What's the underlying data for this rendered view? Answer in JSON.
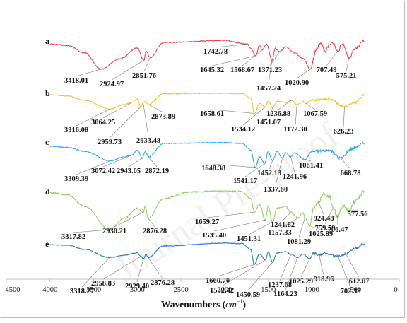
{
  "watermark": "Journal Pre-proof",
  "chart_data": {
    "type": "line",
    "xlabel_main": "Wavenumbers (",
    "xlabel_unit": "cm",
    "xlabel_exp": "−1",
    "xlabel_close": ")",
    "ylabel": "",
    "xlim": [
      4500,
      0
    ],
    "x_ticks": [
      "4500",
      "4000",
      "3500",
      "3000",
      "2500",
      "2000",
      "1500",
      "1000",
      "500",
      "0"
    ],
    "grid": false,
    "series": [
      {
        "letter": "a",
        "color": "#e8454d",
        "x_range": [
          4000,
          400
        ],
        "profile": [
          [
            4000,
            0.85
          ],
          [
            3800,
            0.8
          ],
          [
            3600,
            0.55
          ],
          [
            3418,
            0.0
          ],
          [
            3200,
            0.35
          ],
          [
            3000,
            0.72
          ],
          [
            2925,
            0.3
          ],
          [
            2900,
            0.6
          ],
          [
            2852,
            0.4
          ],
          [
            2700,
            0.9
          ],
          [
            2000,
            0.97
          ],
          [
            1742,
            0.85
          ],
          [
            1700,
            0.7
          ],
          [
            1645,
            0.45
          ],
          [
            1600,
            0.8
          ],
          [
            1568,
            0.65
          ],
          [
            1520,
            0.85
          ],
          [
            1457,
            0.3
          ],
          [
            1420,
            0.7
          ],
          [
            1371,
            0.6
          ],
          [
            1300,
            0.75
          ],
          [
            1200,
            0.55
          ],
          [
            1100,
            0.35
          ],
          [
            1020,
            0.0
          ],
          [
            950,
            0.65
          ],
          [
            900,
            0.9
          ],
          [
            850,
            0.6
          ],
          [
            800,
            0.8
          ],
          [
            760,
            0.9
          ],
          [
            707,
            0.6
          ],
          [
            650,
            0.85
          ],
          [
            575,
            0.4
          ],
          [
            500,
            0.7
          ],
          [
            400,
            0.95
          ]
        ],
        "annotations": [
          {
            "x": 3418.01,
            "label": "3418.01"
          },
          {
            "x": 2924.97,
            "label": "2924.97"
          },
          {
            "x": 2851.76,
            "label": "2851.76"
          },
          {
            "x": 1742.78,
            "label": "1742.78"
          },
          {
            "x": 1645.32,
            "label": "1645.32"
          },
          {
            "x": 1568.67,
            "label": "1568.67"
          },
          {
            "x": 1457.24,
            "label": "1457.24"
          },
          {
            "x": 1371.23,
            "label": "1371.23"
          },
          {
            "x": 1020.9,
            "label": "1020.90"
          },
          {
            "x": 707.49,
            "label": "707.49"
          },
          {
            "x": 575.21,
            "label": "575.21"
          }
        ]
      },
      {
        "letter": "b",
        "color": "#f2c12e",
        "x_range": [
          4000,
          400
        ],
        "profile": [
          [
            4000,
            0.9
          ],
          [
            3800,
            0.85
          ],
          [
            3600,
            0.65
          ],
          [
            3316,
            0.25
          ],
          [
            3150,
            0.45
          ],
          [
            3064,
            0.55
          ],
          [
            3000,
            0.7
          ],
          [
            2960,
            0.35
          ],
          [
            2933,
            0.55
          ],
          [
            2910,
            0.6
          ],
          [
            2874,
            0.45
          ],
          [
            2700,
            0.95
          ],
          [
            2000,
            0.97
          ],
          [
            1800,
            0.95
          ],
          [
            1700,
            0.75
          ],
          [
            1658,
            0.05
          ],
          [
            1600,
            0.5
          ],
          [
            1534,
            0.35
          ],
          [
            1500,
            0.6
          ],
          [
            1451,
            0.3
          ],
          [
            1400,
            0.6
          ],
          [
            1300,
            0.55
          ],
          [
            1237,
            0.65
          ],
          [
            1172,
            0.45
          ],
          [
            1100,
            0.6
          ],
          [
            1067,
            0.5
          ],
          [
            1000,
            0.65
          ],
          [
            800,
            0.7
          ],
          [
            626,
            0.35
          ],
          [
            500,
            0.55
          ],
          [
            400,
            0.9
          ]
        ],
        "annotations": [
          {
            "x": 3316.08,
            "label": "3316.08"
          },
          {
            "x": 3064.25,
            "label": "3064.25"
          },
          {
            "x": 2959.73,
            "label": "2959.73"
          },
          {
            "x": 2933.48,
            "label": "2933.48"
          },
          {
            "x": 2873.89,
            "label": "2873.89"
          },
          {
            "x": 1658.61,
            "label": "1658.61"
          },
          {
            "x": 1534.12,
            "label": "1534.12"
          },
          {
            "x": 1451.07,
            "label": "1451.07"
          },
          {
            "x": 1236.88,
            "label": "1236.88"
          },
          {
            "x": 1172.3,
            "label": "1172.30"
          },
          {
            "x": 1067.59,
            "label": "1067.59"
          },
          {
            "x": 626.23,
            "label": "626.23"
          }
        ]
      },
      {
        "letter": "c",
        "color": "#2ea8df",
        "x_range": [
          4000,
          400
        ],
        "profile": [
          [
            4000,
            0.85
          ],
          [
            3800,
            0.8
          ],
          [
            3600,
            0.65
          ],
          [
            3309,
            0.3
          ],
          [
            3150,
            0.45
          ],
          [
            3072,
            0.5
          ],
          [
            3000,
            0.7
          ],
          [
            2943,
            0.4
          ],
          [
            2910,
            0.65
          ],
          [
            2872,
            0.45
          ],
          [
            2700,
            0.95
          ],
          [
            2000,
            0.98
          ],
          [
            1800,
            0.95
          ],
          [
            1700,
            0.7
          ],
          [
            1648,
            0.05
          ],
          [
            1600,
            0.45
          ],
          [
            1541,
            0.2
          ],
          [
            1500,
            0.65
          ],
          [
            1452,
            0.3
          ],
          [
            1400,
            0.65
          ],
          [
            1337,
            0.4
          ],
          [
            1300,
            0.6
          ],
          [
            1242,
            0.45
          ],
          [
            1200,
            0.6
          ],
          [
            1081,
            0.35
          ],
          [
            1000,
            0.65
          ],
          [
            800,
            0.7
          ],
          [
            669,
            0.4
          ],
          [
            550,
            0.75
          ],
          [
            400,
            0.95
          ]
        ],
        "annotations": [
          {
            "x": 3309.39,
            "label": "3309.39"
          },
          {
            "x": 3072.42,
            "label": "3072.42"
          },
          {
            "x": 2943.05,
            "label": "2943.05"
          },
          {
            "x": 2872.19,
            "label": "2872.19"
          },
          {
            "x": 1648.38,
            "label": "1648.38"
          },
          {
            "x": 1541.17,
            "label": "1541.17"
          },
          {
            "x": 1452.13,
            "label": "1452.13"
          },
          {
            "x": 1337.6,
            "label": "1337.60"
          },
          {
            "x": 1241.96,
            "label": "1241.96"
          },
          {
            "x": 1081.41,
            "label": "1081.41"
          },
          {
            "x": 668.78,
            "label": "668.78"
          }
        ]
      },
      {
        "letter": "d",
        "color": "#92cf62",
        "x_range": [
          4000,
          400
        ],
        "profile": [
          [
            4000,
            0.95
          ],
          [
            3800,
            0.9
          ],
          [
            3600,
            0.6
          ],
          [
            3318,
            0.0
          ],
          [
            3150,
            0.3
          ],
          [
            3000,
            0.55
          ],
          [
            2930,
            0.45
          ],
          [
            2910,
            0.6
          ],
          [
            2876,
            0.3
          ],
          [
            2700,
            0.8
          ],
          [
            2400,
            0.97
          ],
          [
            2000,
            1.0
          ],
          [
            1800,
            0.98
          ],
          [
            1700,
            0.8
          ],
          [
            1659,
            0.45
          ],
          [
            1600,
            0.65
          ],
          [
            1535,
            0.25
          ],
          [
            1500,
            0.6
          ],
          [
            1451,
            0.2
          ],
          [
            1400,
            0.55
          ],
          [
            1300,
            0.6
          ],
          [
            1242,
            0.45
          ],
          [
            1157,
            0.3
          ],
          [
            1100,
            0.45
          ],
          [
            1081,
            0.3
          ],
          [
            1026,
            0.1
          ],
          [
            980,
            0.55
          ],
          [
            924,
            0.7
          ],
          [
            880,
            0.9
          ],
          [
            800,
            0.85
          ],
          [
            760,
            0.55
          ],
          [
            706,
            0.35
          ],
          [
            650,
            0.6
          ],
          [
            578,
            0.5
          ],
          [
            500,
            0.75
          ],
          [
            400,
            0.98
          ]
        ],
        "annotations": [
          {
            "x": 3317.82,
            "label": "3317.82"
          },
          {
            "x": 2930.21,
            "label": "2930.21"
          },
          {
            "x": 2876.28,
            "label": "2876.28"
          },
          {
            "x": 1659.27,
            "label": "1659.27"
          },
          {
            "x": 1535.4,
            "label": "1535.40"
          },
          {
            "x": 1451.31,
            "label": "1451.31"
          },
          {
            "x": 1241.82,
            "label": "1241.82"
          },
          {
            "x": 1157.33,
            "label": "1157.33"
          },
          {
            "x": 1081.29,
            "label": "1081.29"
          },
          {
            "x": 1025.89,
            "label": "1025.89"
          },
          {
            "x": 924.48,
            "label": "924.48"
          },
          {
            "x": 759.59,
            "label": "759.59"
          },
          {
            "x": 706.47,
            "label": "706.47"
          },
          {
            "x": 577.56,
            "label": "577.56"
          }
        ]
      },
      {
        "letter": "e",
        "color": "#2d78c4",
        "x_range": [
          4000,
          400
        ],
        "profile": [
          [
            4000,
            0.9
          ],
          [
            3800,
            0.88
          ],
          [
            3600,
            0.7
          ],
          [
            3318,
            0.35
          ],
          [
            3150,
            0.45
          ],
          [
            3000,
            0.55
          ],
          [
            2959,
            0.4
          ],
          [
            2929,
            0.3
          ],
          [
            2900,
            0.5
          ],
          [
            2876,
            0.35
          ],
          [
            2700,
            0.85
          ],
          [
            2000,
            0.97
          ],
          [
            1800,
            0.95
          ],
          [
            1700,
            0.7
          ],
          [
            1661,
            0.05
          ],
          [
            1600,
            0.5
          ],
          [
            1532,
            0.25
          ],
          [
            1500,
            0.6
          ],
          [
            1451,
            0.15
          ],
          [
            1400,
            0.55
          ],
          [
            1300,
            0.6
          ],
          [
            1238,
            0.5
          ],
          [
            1164,
            0.35
          ],
          [
            1100,
            0.5
          ],
          [
            1025,
            0.3
          ],
          [
            980,
            0.55
          ],
          [
            919,
            0.45
          ],
          [
            850,
            0.55
          ],
          [
            702,
            0.4
          ],
          [
            612,
            0.5
          ],
          [
            500,
            0.75
          ],
          [
            400,
            0.95
          ]
        ],
        "annotations": [
          {
            "x": 3318.27,
            "label": "3318.27"
          },
          {
            "x": 2958.83,
            "label": "2958.83"
          },
          {
            "x": 2929.4,
            "label": "2929.40"
          },
          {
            "x": 2876.28,
            "label": "2876.28"
          },
          {
            "x": 1660.7,
            "label": "1660.70"
          },
          {
            "x": 1532.42,
            "label": "1532.42"
          },
          {
            "x": 1450.59,
            "label": "1450.59"
          },
          {
            "x": 1237.68,
            "label": "1237.68"
          },
          {
            "x": 1164.23,
            "label": "1164.23"
          },
          {
            "x": 1025.29,
            "label": "1025.29"
          },
          {
            "x": 918.96,
            "label": "918.96"
          },
          {
            "x": 702.38,
            "label": "702.38"
          },
          {
            "x": 612.07,
            "label": "612.07"
          }
        ]
      }
    ]
  }
}
